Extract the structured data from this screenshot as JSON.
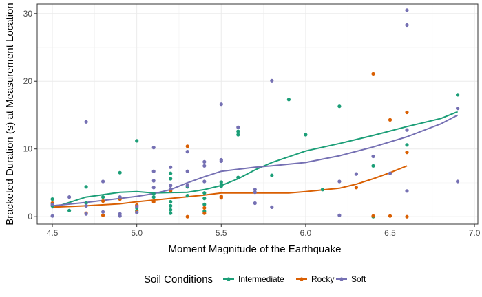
{
  "chart_data": {
    "type": "scatter",
    "xlabel": "Moment Magnitude of the Earthquake",
    "ylabel": "Bracketed Duration (s) at Measurement Location",
    "xlim": [
      4.41,
      7.02
    ],
    "ylim": [
      -1.1,
      31.4
    ],
    "x_ticks": [
      "4.5",
      "5.0",
      "5.5",
      "6.0",
      "6.5",
      "7.0"
    ],
    "y_ticks": [
      "0",
      "10",
      "20",
      "30"
    ],
    "x_tick_values": [
      4.5,
      5.0,
      5.5,
      6.0,
      6.5,
      7.0
    ],
    "y_tick_values": [
      0,
      10,
      20,
      30
    ],
    "grid": true,
    "legend": {
      "title": "Soil Conditions",
      "position": "bottom"
    },
    "series": [
      {
        "name": "Intermediate",
        "color": "#1b9e77",
        "points": [
          [
            4.5,
            2.6
          ],
          [
            4.5,
            1.6
          ],
          [
            4.6,
            0.9
          ],
          [
            4.7,
            4.4
          ],
          [
            4.7,
            2.0
          ],
          [
            4.8,
            2.9
          ],
          [
            4.9,
            6.5
          ],
          [
            5.0,
            11.2
          ],
          [
            5.0,
            1.3
          ],
          [
            5.0,
            0.9
          ],
          [
            5.1,
            2.9
          ],
          [
            5.1,
            3.4
          ],
          [
            5.2,
            6.4
          ],
          [
            5.2,
            5.6
          ],
          [
            5.2,
            2.2
          ],
          [
            5.2,
            1.6
          ],
          [
            5.2,
            1.0
          ],
          [
            5.2,
            0.5
          ],
          [
            5.3,
            4.4
          ],
          [
            5.3,
            3.1
          ],
          [
            5.4,
            3.5
          ],
          [
            5.4,
            2.7
          ],
          [
            5.4,
            1.8
          ],
          [
            5.4,
            0.8
          ],
          [
            5.5,
            4.5
          ],
          [
            5.5,
            5.1
          ],
          [
            5.5,
            4.8
          ],
          [
            5.6,
            12.1
          ],
          [
            5.6,
            12.6
          ],
          [
            5.6,
            5.8
          ],
          [
            5.8,
            6.1
          ],
          [
            5.9,
            17.3
          ],
          [
            6.0,
            12.1
          ],
          [
            6.1,
            4.0
          ],
          [
            6.2,
            16.3
          ],
          [
            6.4,
            7.5
          ],
          [
            6.4,
            0.0
          ],
          [
            6.6,
            10.6
          ],
          [
            6.9,
            18.0
          ]
        ],
        "trend": [
          [
            4.5,
            1.3
          ],
          [
            4.7,
            2.9
          ],
          [
            4.9,
            3.6
          ],
          [
            5.0,
            3.7
          ],
          [
            5.1,
            3.5
          ],
          [
            5.3,
            3.6
          ],
          [
            5.4,
            4.0
          ],
          [
            5.5,
            4.6
          ],
          [
            5.6,
            5.6
          ],
          [
            5.7,
            6.9
          ],
          [
            5.8,
            8.0
          ],
          [
            6.0,
            9.7
          ],
          [
            6.2,
            10.8
          ],
          [
            6.4,
            12.0
          ],
          [
            6.6,
            13.3
          ],
          [
            6.8,
            14.5
          ],
          [
            6.9,
            15.5
          ]
        ]
      },
      {
        "name": "Rocky",
        "color": "#d95f02",
        "points": [
          [
            4.5,
            2.0
          ],
          [
            4.7,
            0.5
          ],
          [
            4.8,
            0.2
          ],
          [
            4.8,
            2.3
          ],
          [
            4.9,
            2.6
          ],
          [
            5.0,
            1.7
          ],
          [
            5.0,
            0.7
          ],
          [
            5.1,
            2.2
          ],
          [
            5.2,
            3.8
          ],
          [
            5.3,
            10.4
          ],
          [
            5.3,
            0.0
          ],
          [
            5.4,
            1.3
          ],
          [
            5.4,
            0.5
          ],
          [
            5.5,
            3.0
          ],
          [
            5.5,
            2.8
          ],
          [
            6.3,
            4.3
          ],
          [
            6.4,
            21.1
          ],
          [
            6.4,
            0.1
          ],
          [
            6.5,
            14.3
          ],
          [
            6.5,
            0.1
          ],
          [
            6.6,
            15.4
          ],
          [
            6.6,
            9.5
          ],
          [
            6.6,
            0.0
          ]
        ],
        "trend": [
          [
            4.5,
            1.4
          ],
          [
            4.7,
            1.6
          ],
          [
            4.9,
            1.9
          ],
          [
            5.0,
            2.2
          ],
          [
            5.2,
            2.7
          ],
          [
            5.4,
            3.2
          ],
          [
            5.5,
            3.5
          ],
          [
            5.7,
            3.5
          ],
          [
            5.9,
            3.5
          ],
          [
            6.0,
            3.7
          ],
          [
            6.2,
            4.2
          ],
          [
            6.3,
            4.8
          ],
          [
            6.4,
            5.6
          ],
          [
            6.5,
            6.5
          ],
          [
            6.6,
            7.5
          ]
        ]
      },
      {
        "name": "Soft",
        "color": "#7570b3",
        "points": [
          [
            4.5,
            0.1
          ],
          [
            4.5,
            1.8
          ],
          [
            4.6,
            2.9
          ],
          [
            4.7,
            14.0
          ],
          [
            4.7,
            1.6
          ],
          [
            4.7,
            0.4
          ],
          [
            4.8,
            5.2
          ],
          [
            4.8,
            0.7
          ],
          [
            4.9,
            2.9
          ],
          [
            4.9,
            0.4
          ],
          [
            4.9,
            0.1
          ],
          [
            5.0,
            1.5
          ],
          [
            5.0,
            0.6
          ],
          [
            5.1,
            10.2
          ],
          [
            5.1,
            6.7
          ],
          [
            5.1,
            5.3
          ],
          [
            5.1,
            4.3
          ],
          [
            5.2,
            7.3
          ],
          [
            5.2,
            4.6
          ],
          [
            5.2,
            4.1
          ],
          [
            5.3,
            9.6
          ],
          [
            5.3,
            6.7
          ],
          [
            5.3,
            4.6
          ],
          [
            5.4,
            8.1
          ],
          [
            5.4,
            7.5
          ],
          [
            5.4,
            5.2
          ],
          [
            5.5,
            16.6
          ],
          [
            5.5,
            8.4
          ],
          [
            5.5,
            8.2
          ],
          [
            5.6,
            13.2
          ],
          [
            5.7,
            4.0
          ],
          [
            5.7,
            3.6
          ],
          [
            5.7,
            2.0
          ],
          [
            5.8,
            20.1
          ],
          [
            5.8,
            1.4
          ],
          [
            6.2,
            5.2
          ],
          [
            6.2,
            0.2
          ],
          [
            6.3,
            6.3
          ],
          [
            6.4,
            8.9
          ],
          [
            6.5,
            6.4
          ],
          [
            6.6,
            30.5
          ],
          [
            6.6,
            28.3
          ],
          [
            6.6,
            12.8
          ],
          [
            6.6,
            3.8
          ],
          [
            6.9,
            16.0
          ],
          [
            6.9,
            5.2
          ]
        ],
        "trend": [
          [
            4.5,
            1.6
          ],
          [
            4.7,
            2.1
          ],
          [
            4.9,
            2.7
          ],
          [
            5.0,
            3.0
          ],
          [
            5.1,
            3.4
          ],
          [
            5.2,
            4.0
          ],
          [
            5.3,
            5.0
          ],
          [
            5.4,
            5.9
          ],
          [
            5.5,
            6.7
          ],
          [
            5.6,
            7.0
          ],
          [
            5.7,
            7.3
          ],
          [
            5.8,
            7.5
          ],
          [
            6.0,
            8.0
          ],
          [
            6.2,
            9.0
          ],
          [
            6.4,
            10.3
          ],
          [
            6.6,
            11.8
          ],
          [
            6.8,
            13.7
          ],
          [
            6.9,
            15.0
          ]
        ]
      }
    ]
  }
}
